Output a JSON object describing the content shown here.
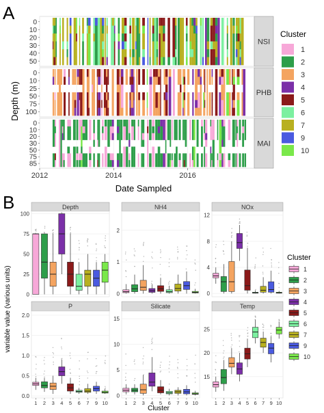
{
  "colors": {
    "1": "#f7a8d8",
    "2": "#2e9e4a",
    "3": "#f4a460",
    "4": "#7b2fa8",
    "5": "#8b1a1a",
    "6": "#7cf0a0",
    "7": "#b8b020",
    "9": "#4a5ae0",
    "10": "#7ae84a"
  },
  "chart_data": [
    {
      "type": "heatmap",
      "panel_letter": "A",
      "xlabel": "Date Sampled",
      "ylabel": "Depth (m)",
      "xticks": [
        "2012",
        "2014",
        "2016"
      ],
      "xlim": [
        2012.0,
        2017.8
      ],
      "legend": {
        "title": "Cluster",
        "placement": "right",
        "entries": [
          "1",
          "2",
          "3",
          "4",
          "5",
          "6",
          "7",
          "9",
          "10"
        ]
      },
      "facets": [
        {
          "name": "NSI",
          "depths": [
            "0",
            "10",
            "20",
            "30",
            "40",
            "50"
          ],
          "dominant_clusters": [
            "7",
            "6",
            "2",
            "5",
            "9"
          ]
        },
        {
          "name": "PHB",
          "depths": [
            "0",
            "10",
            "25",
            "50",
            "75",
            "100"
          ],
          "dominant_clusters": [
            "3",
            "5",
            "4",
            "1"
          ]
        },
        {
          "name": "MAI",
          "depths": [
            "0",
            "10",
            "20",
            "30",
            "50",
            "75",
            "85"
          ],
          "dominant_clusters": [
            "2",
            "1",
            "4",
            "5"
          ]
        }
      ]
    },
    {
      "type": "box",
      "panel_letter": "B",
      "xlabel": "Cluster",
      "ylabel": "variable value (various units)",
      "categories": [
        "1",
        "2",
        "3",
        "4",
        "5",
        "6",
        "7",
        "9",
        "10"
      ],
      "legend": {
        "title": "Cluster",
        "placement": "right",
        "entries": [
          "1",
          "2",
          "3",
          "4",
          "5",
          "6",
          "7",
          "9",
          "10"
        ]
      },
      "facets": [
        {
          "name": "Depth",
          "yticks": [
            "0",
            "25",
            "50",
            "75",
            "100"
          ],
          "ylim": [
            -3,
            103
          ],
          "boxes": [
            [
              0,
              0,
              75,
              75,
              75
            ],
            [
              0,
              20,
              40,
              75,
              75
            ],
            [
              0,
              10,
              25,
              40,
              75
            ],
            [
              25,
              50,
              75,
              100,
              100
            ],
            [
              0,
              10,
              25,
              40,
              75
            ],
            [
              0,
              5,
              10,
              25,
              40
            ],
            [
              0,
              10,
              25,
              30,
              50
            ],
            [
              0,
              10,
              20,
              30,
              40
            ],
            [
              0,
              15,
              30,
              40,
              50
            ]
          ]
        },
        {
          "name": "NH4",
          "yticks": [
            "0",
            "1",
            "2"
          ],
          "ylim": [
            -0.1,
            2.6
          ],
          "boxes": [
            [
              0,
              0.03,
              0.06,
              0.12,
              0.3
            ],
            [
              0,
              0.06,
              0.15,
              0.28,
              0.6
            ],
            [
              0,
              0.1,
              0.2,
              0.42,
              0.9
            ],
            [
              0,
              0.04,
              0.09,
              0.16,
              0.3
            ],
            [
              0,
              0.07,
              0.15,
              0.25,
              0.5
            ],
            [
              0,
              0.03,
              0.06,
              0.12,
              0.25
            ],
            [
              0,
              0.08,
              0.16,
              0.3,
              0.6
            ],
            [
              0,
              0.13,
              0.25,
              0.38,
              0.7
            ],
            [
              0,
              0.02,
              0.04,
              0.07,
              0.15
            ]
          ]
        },
        {
          "name": "NOx",
          "yticks": [
            "0",
            "4",
            "8",
            "12"
          ],
          "ylim": [
            -0.5,
            12.6
          ],
          "boxes": [
            [
              1.5,
              2.4,
              2.7,
              3.1,
              4
            ],
            [
              0,
              0.3,
              1.8,
              2.6,
              4.5
            ],
            [
              0,
              0.3,
              1.8,
              4.9,
              8
            ],
            [
              5,
              6.9,
              7.8,
              9.2,
              10.5
            ],
            [
              0,
              0.5,
              1.2,
              3.6,
              7
            ],
            [
              0,
              0.05,
              0.1,
              0.2,
              0.5
            ],
            [
              0,
              0.2,
              0.5,
              1.1,
              2.5
            ],
            [
              0,
              0.2,
              0.6,
              1.8,
              3.5
            ],
            [
              0,
              0.05,
              0.1,
              0.2,
              0.4
            ]
          ]
        },
        {
          "name": "P",
          "yticks": [
            "0.0",
            "0.5",
            "1.0",
            "1.5",
            "2.0"
          ],
          "ylim": [
            -0.05,
            2.1
          ],
          "boxes": [
            [
              0.15,
              0.26,
              0.3,
              0.34,
              0.45
            ],
            [
              0.1,
              0.2,
              0.26,
              0.35,
              0.45
            ],
            [
              0.05,
              0.16,
              0.24,
              0.32,
              0.5
            ],
            [
              0.3,
              0.5,
              0.6,
              0.72,
              0.9
            ],
            [
              0.05,
              0.12,
              0.2,
              0.3,
              0.45
            ],
            [
              0.05,
              0.09,
              0.11,
              0.14,
              0.2
            ],
            [
              0.05,
              0.09,
              0.12,
              0.18,
              0.3
            ],
            [
              0.05,
              0.12,
              0.18,
              0.24,
              0.35
            ],
            [
              0.05,
              0.07,
              0.09,
              0.12,
              0.18
            ]
          ]
        },
        {
          "name": "Silicate",
          "yticks": [
            "0",
            "5",
            "10",
            "15"
          ],
          "ylim": [
            -0.5,
            16.5
          ],
          "boxes": [
            [
              0.2,
              0.7,
              1,
              1.4,
              2.2
            ],
            [
              0.2,
              0.7,
              1,
              1.4,
              2.2
            ],
            [
              0,
              0.4,
              1.1,
              2.2,
              4
            ],
            [
              0.8,
              1.8,
              2.6,
              4.4,
              7.5
            ],
            [
              0.2,
              0.5,
              1,
              1.7,
              3
            ],
            [
              0,
              0.3,
              0.5,
              0.8,
              1.3
            ],
            [
              0,
              0.4,
              0.7,
              1,
              1.6
            ],
            [
              0,
              0.3,
              0.7,
              1.2,
              2
            ],
            [
              0,
              0.2,
              0.3,
              0.5,
              0.9
            ]
          ]
        },
        {
          "name": "Temp",
          "yticks": [
            "15",
            "20",
            "25"
          ],
          "ylim": [
            10.5,
            28.8
          ],
          "boxes": [
            [
              11.8,
              12.8,
              13.3,
              13.9,
              15
            ],
            [
              12,
              13.5,
              14.8,
              16.5,
              18.5
            ],
            [
              15.5,
              17,
              17.8,
              19,
              21
            ],
            [
              14,
              15.5,
              16.6,
              17.9,
              20
            ],
            [
              17,
              18.7,
              19.8,
              21,
              23
            ],
            [
              22,
              23.2,
              24.4,
              25.4,
              27
            ],
            [
              20,
              21.2,
              22.2,
              23.1,
              24.5
            ],
            [
              18,
              19.8,
              21,
              22,
              23.5
            ],
            [
              23,
              24,
              24.8,
              25.4,
              26.5
            ]
          ]
        }
      ]
    }
  ]
}
